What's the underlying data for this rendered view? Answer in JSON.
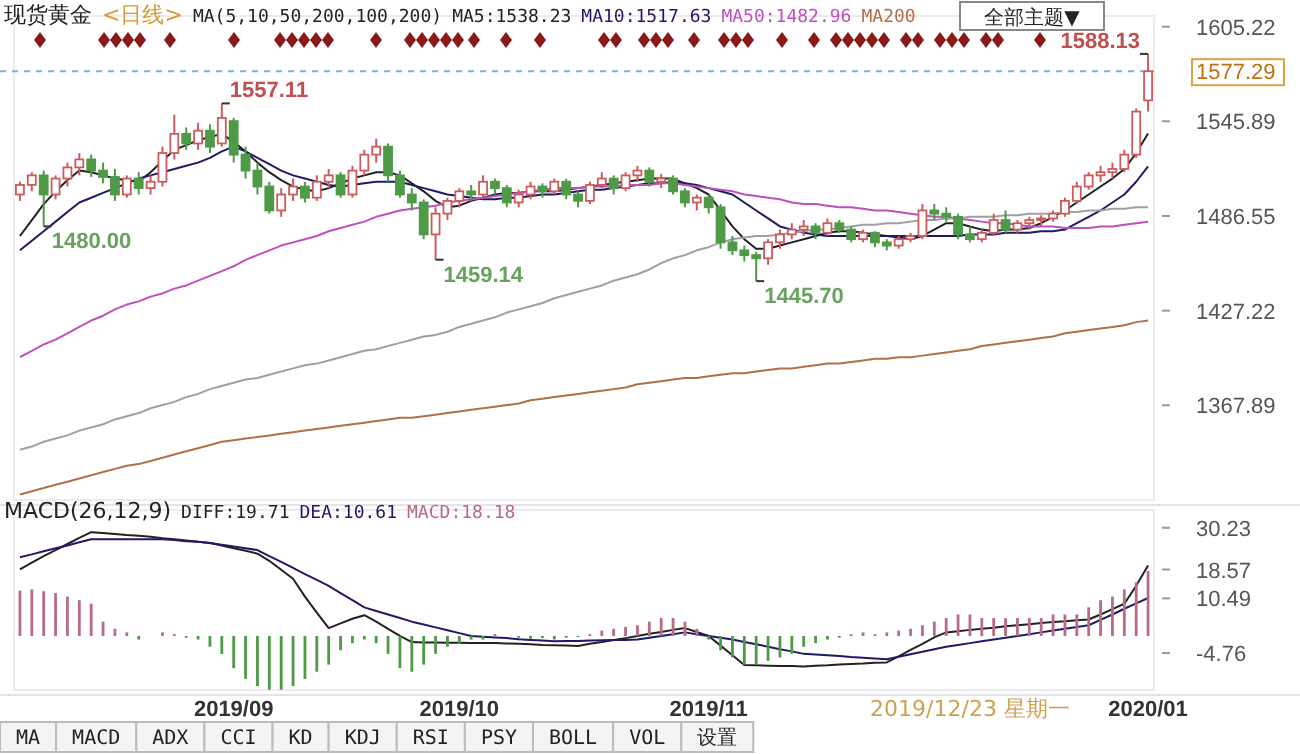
{
  "chart_data": [
    {
      "type": "candlestick",
      "title": "现货黄金",
      "subtitle": "<日线>",
      "legend": "top",
      "tick_labels": "y",
      "categories": [
        null,
        null,
        null,
        null,
        null,
        null,
        null,
        null,
        null,
        null,
        null,
        null,
        null,
        null,
        null,
        null,
        null,
        null,
        null,
        null,
        null,
        null,
        null,
        null,
        null,
        null,
        null,
        null,
        null,
        null,
        null,
        null,
        null,
        null,
        null,
        null,
        null,
        null,
        null,
        null,
        null,
        null,
        null,
        null,
        null,
        null,
        null,
        null,
        null,
        null,
        null,
        null,
        null,
        null,
        null,
        null,
        null,
        null,
        null,
        null,
        null,
        null,
        null,
        null,
        null,
        null,
        null,
        null,
        null,
        null,
        null,
        null,
        null,
        null,
        null,
        null,
        null,
        null,
        null,
        null,
        null,
        null,
        null,
        null,
        null,
        null,
        null,
        null,
        null,
        null,
        null,
        null,
        null,
        null,
        null,
        null
      ],
      "ylim": [
        1308.5,
        1611.9
      ],
      "yticks": [
        1367.89,
        1427.22,
        1486.55,
        1545.89,
        1605.22
      ],
      "ref_lines": [
        {
          "axis": "y",
          "value": 1577.29,
          "label": "1577.29",
          "color": "#7ab4dc",
          "line_style": "dashed"
        }
      ],
      "annotations": [
        "MA(5,10,50,200,100,200)",
        "全部主题▼",
        "1557.11",
        "1480.00",
        "1459.14",
        "1445.70",
        "1588.13"
      ],
      "series": [
        {
          "colors": [
            "#cc5c5c",
            "#cc5c5c",
            "#4f9a47",
            "#cc5c5c",
            "#cc5c5c",
            "#cc5c5c",
            "#4f9a47",
            "#4f9a47",
            "#4f9a47",
            "#cc5c5c",
            "#4f9a47",
            "#cc5c5c",
            "#cc5c5c",
            "#cc5c5c",
            "#4f9a47",
            "#cc5c5c",
            "#4f9a47",
            "#cc5c5c",
            "#4f9a47",
            "#4f9a47",
            "#4f9a47",
            "#4f9a47",
            "#cc5c5c",
            "#cc5c5c",
            "#4f9a47",
            "#cc5c5c",
            "#cc5c5c",
            "#4f9a47",
            "#cc5c5c",
            "#cc5c5c",
            "#cc5c5c",
            "#4f9a47",
            "#4f9a47",
            "#4f9a47",
            "#4f9a47",
            "#cc5c5c",
            "#cc5c5c",
            "#cc5c5c",
            "#4f9a47",
            "#cc5c5c",
            "#4f9a47",
            "#4f9a47",
            "#cc5c5c",
            "#cc5c5c",
            "#4f9a47",
            "#cc5c5c",
            "#4f9a47",
            "#4f9a47",
            "#cc5c5c",
            "#cc5c5c",
            "#4f9a47",
            "#cc5c5c",
            "#cc5c5c",
            "#4f9a47",
            "#cc5c5c",
            "#4f9a47",
            "#4f9a47",
            "#cc5c5c",
            "#4f9a47",
            "#4f9a47",
            "#4f9a47",
            "#4f9a47",
            "#4f9a47",
            "#cc5c5c",
            "#cc5c5c",
            "#cc5c5c",
            "#cc5c5c",
            "#4f9a47",
            "#cc5c5c",
            "#4f9a47",
            "#4f9a47",
            "#cc5c5c",
            "#4f9a47",
            "#4f9a47",
            "#cc5c5c",
            "#cc5c5c",
            "#cc5c5c",
            "#4f9a47",
            "#4f9a47",
            "#4f9a47",
            "#4f9a47",
            "#cc5c5c",
            "#cc5c5c",
            "#4f9a47",
            "#cc5c5c",
            "#cc5c5c",
            "#cc5c5c",
            "#cc5c5c",
            "#cc5c5c",
            "#cc5c5c",
            "#cc5c5c",
            "#cc5c5c",
            "#cc5c5c",
            "#cc5c5c",
            "#cc5c5c",
            "#cc5c5c"
          ],
          "ohlc": [
            [
              1500,
              1508,
              1496,
              1506
            ],
            [
              1506,
              1514,
              1502,
              1512
            ],
            [
              1512,
              1515,
              1480,
              1500
            ],
            [
              1500,
              1512,
              1497,
              1510
            ],
            [
              1510,
              1520,
              1505,
              1517
            ],
            [
              1517,
              1526,
              1512,
              1522
            ],
            [
              1522,
              1525,
              1511,
              1515
            ],
            [
              1515,
              1520,
              1507,
              1511
            ],
            [
              1511,
              1516,
              1496,
              1500
            ],
            [
              1500,
              1512,
              1498,
              1510
            ],
            [
              1510,
              1514,
              1500,
              1504
            ],
            [
              1504,
              1512,
              1500,
              1508
            ],
            [
              1508,
              1530,
              1505,
              1526
            ],
            [
              1526,
              1550,
              1522,
              1538
            ],
            [
              1538,
              1542,
              1528,
              1532
            ],
            [
              1532,
              1545,
              1528,
              1540
            ],
            [
              1540,
              1544,
              1526,
              1530
            ],
            [
              1532,
              1557.11,
              1530,
              1548
            ],
            [
              1546,
              1548,
              1520,
              1525
            ],
            [
              1525,
              1530,
              1510,
              1515
            ],
            [
              1515,
              1520,
              1500,
              1505
            ],
            [
              1505,
              1508,
              1488,
              1490
            ],
            [
              1490,
              1504,
              1486,
              1500
            ],
            [
              1500,
              1510,
              1496,
              1505
            ],
            [
              1505,
              1508,
              1495,
              1498
            ],
            [
              1498,
              1512,
              1496,
              1508
            ],
            [
              1508,
              1516,
              1504,
              1512
            ],
            [
              1512,
              1514,
              1498,
              1500
            ],
            [
              1500,
              1518,
              1498,
              1515
            ],
            [
              1515,
              1528,
              1512,
              1525
            ],
            [
              1525,
              1535,
              1520,
              1530
            ],
            [
              1530,
              1532,
              1508,
              1512
            ],
            [
              1512,
              1515,
              1498,
              1500
            ],
            [
              1500,
              1504,
              1490,
              1495
            ],
            [
              1495,
              1497,
              1472,
              1475
            ],
            [
              1475,
              1492,
              1459.14,
              1488
            ],
            [
              1488,
              1498,
              1484,
              1496
            ],
            [
              1496,
              1504,
              1492,
              1502
            ],
            [
              1502,
              1506,
              1496,
              1500
            ],
            [
              1500,
              1512,
              1498,
              1508
            ],
            [
              1508,
              1510,
              1500,
              1504
            ],
            [
              1504,
              1506,
              1492,
              1495
            ],
            [
              1495,
              1503,
              1492,
              1500
            ],
            [
              1500,
              1508,
              1497,
              1505
            ],
            [
              1505,
              1507,
              1498,
              1502
            ],
            [
              1502,
              1510,
              1500,
              1508
            ],
            [
              1508,
              1510,
              1497,
              1500
            ],
            [
              1500,
              1502,
              1492,
              1496
            ],
            [
              1496,
              1508,
              1494,
              1506
            ],
            [
              1506,
              1514,
              1504,
              1510
            ],
            [
              1510,
              1512,
              1500,
              1504
            ],
            [
              1504,
              1514,
              1502,
              1512
            ],
            [
              1512,
              1518,
              1508,
              1515
            ],
            [
              1515,
              1517,
              1505,
              1508
            ],
            [
              1508,
              1513,
              1504,
              1510
            ],
            [
              1510,
              1512,
              1500,
              1502
            ],
            [
              1502,
              1504,
              1492,
              1495
            ],
            [
              1495,
              1500,
              1490,
              1498
            ],
            [
              1498,
              1500,
              1488,
              1492
            ],
            [
              1492,
              1494,
              1466,
              1470
            ],
            [
              1470,
              1474,
              1462,
              1465
            ],
            [
              1465,
              1468,
              1458,
              1462
            ],
            [
              1462,
              1464,
              1445.7,
              1460
            ],
            [
              1460,
              1472,
              1456,
              1470
            ],
            [
              1470,
              1478,
              1466,
              1475
            ],
            [
              1475,
              1482,
              1472,
              1478
            ],
            [
              1478,
              1484,
              1474,
              1480
            ],
            [
              1480,
              1482,
              1472,
              1476
            ],
            [
              1476,
              1485,
              1474,
              1482
            ],
            [
              1482,
              1484,
              1476,
              1478
            ],
            [
              1478,
              1480,
              1470,
              1472
            ],
            [
              1472,
              1478,
              1470,
              1476
            ],
            [
              1476,
              1477,
              1467,
              1470
            ],
            [
              1470,
              1472,
              1465,
              1468
            ],
            [
              1468,
              1474,
              1466,
              1472
            ],
            [
              1472,
              1476,
              1470,
              1474
            ],
            [
              1474,
              1494,
              1472,
              1490
            ],
            [
              1490,
              1494,
              1484,
              1488
            ],
            [
              1488,
              1492,
              1483,
              1486
            ],
            [
              1486,
              1488,
              1472,
              1475
            ],
            [
              1475,
              1480,
              1470,
              1472
            ],
            [
              1472,
              1478,
              1470,
              1476
            ],
            [
              1476,
              1488,
              1474,
              1484
            ],
            [
              1484,
              1490,
              1476,
              1478
            ],
            [
              1478,
              1484,
              1476,
              1482
            ],
            [
              1482,
              1486,
              1478,
              1484
            ],
            [
              1484,
              1487,
              1480,
              1485
            ],
            [
              1485,
              1490,
              1483,
              1488
            ],
            [
              1488,
              1498,
              1486,
              1496
            ],
            [
              1496,
              1508,
              1494,
              1505
            ],
            [
              1505,
              1514,
              1503,
              1512
            ],
            [
              1512,
              1518,
              1508,
              1514
            ],
            [
              1514,
              1520,
              1510,
              1516
            ],
            [
              1516,
              1528,
              1514,
              1525
            ],
            [
              1525,
              1554,
              1523,
              1552
            ],
            [
              1559,
              1588.13,
              1552,
              1577.29
            ]
          ]
        },
        {
          "type": "line",
          "name": "MA5:1538.23",
          "color": "#222222",
          "values": [
            1474,
            1484,
            1494,
            1502,
            1509,
            1515,
            1514,
            1512,
            1510,
            1509,
            1508,
            1514,
            1521,
            1528,
            1531,
            1534,
            1536,
            1538,
            1533,
            1527,
            1520,
            1514,
            1509,
            1505,
            1503,
            1502,
            1504,
            1507,
            1510,
            1512,
            1514,
            1514,
            1512,
            1507,
            1502,
            1496,
            1492,
            1493,
            1496,
            1498,
            1500,
            1501,
            1501,
            1502,
            1502,
            1502,
            1503,
            1504,
            1505,
            1506,
            1507,
            1508,
            1509,
            1510,
            1510,
            1510,
            1507,
            1504,
            1500,
            1490,
            1480,
            1472,
            1466,
            1466,
            1468,
            1470,
            1472,
            1474,
            1476,
            1477,
            1477,
            1476,
            1475,
            1474,
            1473,
            1472,
            1474,
            1478,
            1482,
            1482,
            1480,
            1478,
            1477,
            1478,
            1478,
            1479,
            1482,
            1486,
            1490,
            1495,
            1500,
            1505,
            1510,
            1516,
            1526,
            1538.23
          ]
        },
        {
          "type": "line",
          "name": "MA10:1517.63",
          "color": "#1c1c66",
          "values": [
            1465,
            1471,
            1477,
            1483,
            1489,
            1495,
            1498,
            1501,
            1504,
            1507,
            1510,
            1512,
            1514,
            1516,
            1518,
            1520,
            1523,
            1527,
            1530,
            1527,
            1523,
            1519,
            1515,
            1512,
            1510,
            1508,
            1506,
            1505,
            1506,
            1507,
            1508,
            1508,
            1508,
            1506,
            1504,
            1502,
            1500,
            1499,
            1498,
            1497,
            1497,
            1498,
            1498,
            1499,
            1500,
            1500,
            1501,
            1502,
            1503,
            1503,
            1504,
            1505,
            1506,
            1507,
            1507,
            1508,
            1507,
            1506,
            1504,
            1502,
            1500,
            1495,
            1490,
            1485,
            1480,
            1478,
            1476,
            1475,
            1474,
            1474,
            1474,
            1474,
            1474,
            1474,
            1474,
            1474,
            1474,
            1474,
            1474,
            1474,
            1475,
            1475,
            1475,
            1476,
            1476,
            1476,
            1477,
            1477,
            1478,
            1482,
            1486,
            1490,
            1495,
            1500,
            1508,
            1517.63
          ]
        },
        {
          "type": "line",
          "name": "MA50:1482.96",
          "color": "#c050c0",
          "values": [
            1398,
            1402,
            1406,
            1409,
            1413,
            1417,
            1421,
            1424,
            1428,
            1431,
            1433,
            1436,
            1438,
            1441,
            1443,
            1446,
            1449,
            1452,
            1455,
            1459,
            1462,
            1465,
            1468,
            1470,
            1472,
            1474,
            1477,
            1479,
            1481,
            1483,
            1486,
            1488,
            1490,
            1491,
            1492,
            1493,
            1495,
            1496,
            1497,
            1498,
            1499,
            1500,
            1501,
            1502,
            1503,
            1504,
            1504,
            1504,
            1505,
            1505,
            1505,
            1506,
            1506,
            1506,
            1507,
            1507,
            1506,
            1505,
            1504,
            1503,
            1502,
            1500,
            1499,
            1498,
            1497,
            1495,
            1494,
            1494,
            1493,
            1492,
            1492,
            1491,
            1490,
            1490,
            1489,
            1488,
            1487,
            1486,
            1486,
            1485,
            1484,
            1483,
            1482,
            1482,
            1481,
            1480,
            1480,
            1480,
            1479,
            1479,
            1479,
            1480,
            1480,
            1481,
            1482,
            1482.96
          ]
        },
        {
          "type": "line",
          "color": "#a0a0a0",
          "values": [
            1340,
            1342,
            1345,
            1347,
            1349,
            1352,
            1354,
            1356,
            1359,
            1361,
            1363,
            1366,
            1368,
            1370,
            1373,
            1375,
            1378,
            1380,
            1382,
            1384,
            1385,
            1387,
            1389,
            1391,
            1393,
            1394,
            1396,
            1398,
            1400,
            1402,
            1403,
            1405,
            1407,
            1409,
            1411,
            1412,
            1414,
            1417,
            1419,
            1421,
            1423,
            1426,
            1428,
            1430,
            1432,
            1435,
            1437,
            1439,
            1441,
            1443,
            1446,
            1448,
            1450,
            1453,
            1457,
            1460,
            1462,
            1465,
            1467,
            1470,
            1472,
            1473,
            1474,
            1474,
            1475,
            1476,
            1477,
            1478,
            1478,
            1479,
            1480,
            1481,
            1481,
            1482,
            1482,
            1483,
            1484,
            1484,
            1485,
            1485,
            1486,
            1486,
            1486,
            1487,
            1487,
            1488,
            1488,
            1488,
            1489,
            1489,
            1490,
            1490,
            1491,
            1491,
            1492,
            1492
          ]
        },
        {
          "type": "line",
          "name": "MA200",
          "color": "#b0704a",
          "values": [
            1312,
            1314,
            1316,
            1318,
            1320,
            1322,
            1324,
            1326,
            1328,
            1330,
            1331,
            1333,
            1335,
            1337,
            1339,
            1341,
            1343,
            1345,
            1346,
            1347,
            1348,
            1349,
            1350,
            1351,
            1352,
            1353,
            1354,
            1355,
            1356,
            1357,
            1358,
            1359,
            1360,
            1360,
            1361,
            1362,
            1363,
            1364,
            1365,
            1366,
            1367,
            1368,
            1369,
            1371,
            1372,
            1373,
            1374,
            1375,
            1376,
            1377,
            1378,
            1379,
            1381,
            1382,
            1383,
            1384,
            1385,
            1385,
            1386,
            1387,
            1388,
            1388,
            1389,
            1390,
            1391,
            1391,
            1392,
            1393,
            1394,
            1394,
            1395,
            1396,
            1397,
            1397,
            1398,
            1398,
            1399,
            1400,
            1401,
            1402,
            1403,
            1405,
            1406,
            1407,
            1408,
            1409,
            1410,
            1411,
            1413,
            1414,
            1415,
            1416,
            1417,
            1418,
            1420,
            1421
          ]
        }
      ]
    },
    {
      "type": "bar",
      "title": "MACD(26,12,9)",
      "legend": "top left",
      "categories": [
        null,
        null,
        null,
        null,
        null,
        null,
        null,
        null,
        null,
        null,
        null,
        null,
        null,
        null,
        null,
        null,
        null,
        null,
        "2019/09",
        null,
        null,
        null,
        null,
        null,
        null,
        null,
        null,
        null,
        null,
        null,
        null,
        null,
        null,
        null,
        null,
        null,
        null,
        "2019/10",
        null,
        null,
        null,
        null,
        null,
        null,
        null,
        null,
        null,
        null,
        null,
        null,
        null,
        null,
        null,
        null,
        null,
        null,
        null,
        null,
        "2019/11",
        null,
        null,
        null,
        null,
        null,
        null,
        null,
        null,
        null,
        null,
        null,
        null,
        null,
        null,
        null,
        null,
        null,
        null,
        null,
        null,
        null,
        null,
        null,
        null,
        null,
        null,
        null,
        null,
        null,
        null,
        null,
        null,
        null,
        null,
        null,
        null,
        "2020/01"
      ],
      "ylim": [
        -15.1,
        35.2
      ],
      "yticks": [
        -4.76,
        10.49,
        18.57,
        30.23
      ],
      "annotations": [
        "2019/12/23 星期一",
        "MA",
        "MACD",
        "ADX",
        "CCI",
        "KD",
        "KDJ",
        "RSI",
        "PSY",
        "BOLL",
        "VOL",
        "设置"
      ],
      "series": [
        {
          "type": "line",
          "name": "DIFF:19.71",
          "color": "#222222",
          "values": [
            18.6,
            20.5,
            22.3,
            24,
            25.7,
            27.4,
            29,
            28.8,
            28.5,
            28.2,
            28,
            27.7,
            27.3,
            27,
            26.7,
            26.3,
            26,
            25.3,
            24.5,
            23.8,
            23,
            21,
            18.5,
            16,
            11,
            6.5,
            2.2,
            3.5,
            4.8,
            5.8,
            4,
            2,
            0,
            -1.7,
            -1.8,
            -1.8,
            -1.9,
            -1.9,
            -2,
            -2,
            -2,
            -2.1,
            -2.2,
            -2.3,
            -2.5,
            -2.6,
            -2.7,
            -2.8,
            -2.2,
            -1.7,
            -1.1,
            -0.6,
            0,
            0.6,
            1.1,
            1.7,
            2.2,
            1.1,
            0,
            -2.7,
            -5.4,
            -8.1,
            -8.2,
            -8.3,
            -8.4,
            -8.4,
            -8.5,
            -8.3,
            -8.2,
            -8,
            -7.8,
            -7.7,
            -7.5,
            -7.4,
            -5.7,
            -3.9,
            -2.2,
            -0.4,
            1,
            1.3,
            1.7,
            2,
            2.3,
            2.7,
            3,
            3.3,
            3.6,
            3.9,
            4.1,
            4.4,
            4.6,
            6,
            7.5,
            9,
            14,
            19.71
          ]
        },
        {
          "type": "line",
          "name": "DEA:10.61",
          "color": "#1c1c66",
          "values": [
            22,
            22.8,
            23.7,
            24.5,
            25.3,
            26.2,
            27,
            27,
            27,
            27,
            27,
            27,
            27,
            26.8,
            26.5,
            26.3,
            26,
            25.5,
            25,
            24.5,
            24,
            22.3,
            20.7,
            19,
            17.3,
            15.7,
            14,
            12,
            10,
            8,
            7,
            6,
            5,
            4,
            3.2,
            2.4,
            1.6,
            0.8,
            0,
            -0.2,
            -0.4,
            -0.6,
            -0.9,
            -1.1,
            -1.3,
            -1.5,
            -1.4,
            -1.4,
            -1.3,
            -1.2,
            -1.1,
            -1.1,
            -1,
            -0.5,
            0,
            0.5,
            1,
            0.5,
            0,
            -0.5,
            -1,
            -1.7,
            -2.3,
            -3,
            -3.7,
            -4.3,
            -5,
            -5.2,
            -5.4,
            -5.6,
            -5.9,
            -6.1,
            -6.3,
            -6.5,
            -5.8,
            -5.1,
            -4.4,
            -3.7,
            -3,
            -2.5,
            -2,
            -1.5,
            -1,
            -0.5,
            0,
            0.5,
            1,
            1.5,
            2,
            2.5,
            3,
            4.5,
            6,
            7.6,
            9.1,
            10.61
          ]
        },
        {
          "name": "MACD:18.18",
          "color": "#b86a86",
          "colors": [
            "#b86a86",
            "#b86a86",
            "#b86a86",
            "#b86a86",
            "#b86a86",
            "#b86a86",
            "#b86a86",
            "#b86a86",
            "#b86a86",
            "#b86a86",
            "#4f9a47",
            null,
            "#b86a86",
            "#b86a86",
            "#4f9a47",
            "#4f9a47",
            "#4f9a47",
            "#4f9a47",
            "#4f9a47",
            "#4f9a47",
            "#4f9a47",
            "#4f9a47",
            "#4f9a47",
            "#4f9a47",
            "#4f9a47",
            "#4f9a47",
            "#4f9a47",
            "#4f9a47",
            "#4f9a47",
            "#4f9a47",
            "#4f9a47",
            "#4f9a47",
            "#4f9a47",
            "#4f9a47",
            "#4f9a47",
            "#4f9a47",
            "#4f9a47",
            "#4f9a47",
            "#4f9a47",
            "#4f9a47",
            "#b86a86",
            null,
            "#4f9a47",
            "#4f9a47",
            "#4f9a47",
            "#4f9a47",
            "#4f9a47",
            "#4f9a47",
            "#b86a86",
            "#b86a86",
            "#b86a86",
            "#b86a86",
            "#b86a86",
            "#b86a86",
            "#b86a86",
            "#b86a86",
            "#b86a86",
            "#b86a86",
            "#4f9a47",
            "#4f9a47",
            "#4f9a47",
            "#4f9a47",
            "#4f9a47",
            "#4f9a47",
            "#4f9a47",
            "#4f9a47",
            "#4f9a47",
            "#4f9a47",
            "#4f9a47",
            "#4f9a47",
            "#b86a86",
            "#b86a86",
            "#b86a86",
            "#b86a86",
            "#b86a86",
            "#b86a86",
            "#b86a86",
            "#b86a86",
            "#b86a86",
            "#b86a86",
            "#b86a86",
            "#b86a86",
            "#b86a86",
            "#b86a86",
            "#b86a86",
            "#b86a86",
            "#b86a86",
            "#b86a86",
            "#b86a86",
            "#b86a86",
            "#b86a86",
            "#b86a86",
            "#b86a86",
            "#b86a86",
            "#b86a86",
            "#b86a86"
          ],
          "values": [
            12.7,
            13,
            12.5,
            12,
            11,
            10,
            9,
            4,
            2,
            1,
            -1,
            null,
            1,
            0.5,
            -0.5,
            -1,
            -3,
            -5,
            -9,
            -12,
            -14,
            -15,
            -15,
            -14,
            -12,
            -10,
            -8,
            -4,
            -2,
            -1,
            -2,
            -5,
            -9,
            -10,
            -8,
            -5,
            -3,
            -2,
            -1,
            -1,
            0.5,
            null,
            -0.5,
            -0.8,
            -0.6,
            -1,
            -0.5,
            -0.3,
            0.5,
            1.5,
            2,
            2.5,
            3,
            4,
            5,
            5,
            4,
            2,
            -1,
            -4,
            -6,
            -8,
            -8,
            -7,
            -6,
            -5,
            -3,
            -2,
            -1,
            -0.5,
            0.5,
            1,
            0.5,
            1,
            1.5,
            2,
            3,
            4,
            5,
            6,
            6,
            5,
            5,
            5,
            5,
            5,
            5,
            6,
            6,
            6,
            8,
            10,
            11,
            13,
            15,
            18.18
          ]
        }
      ]
    }
  ]
}
